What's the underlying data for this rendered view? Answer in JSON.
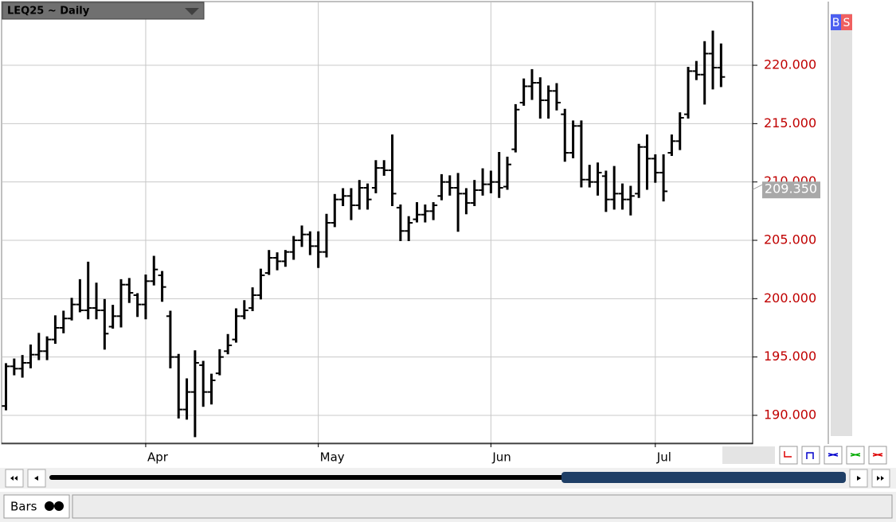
{
  "chart_data": {
    "type": "ohlc",
    "title": "LEQ25 ~ Daily",
    "categories": [
      null,
      null,
      null,
      null,
      null,
      null,
      null,
      null,
      null,
      null,
      null,
      null,
      null,
      null,
      null,
      null,
      null,
      "Apr",
      null,
      null,
      null,
      null,
      null,
      null,
      null,
      null,
      null,
      null,
      null,
      null,
      null,
      null,
      null,
      null,
      null,
      null,
      null,
      null,
      "May",
      null,
      null,
      null,
      null,
      null,
      null,
      null,
      null,
      null,
      null,
      null,
      null,
      null,
      null,
      null,
      null,
      null,
      null,
      null,
      null,
      "Jun",
      null,
      null,
      null,
      null,
      null,
      null,
      null,
      null,
      null,
      null,
      null,
      null,
      null,
      null,
      null,
      null,
      null,
      null,
      null,
      "Jul",
      null,
      null,
      null,
      null,
      null,
      null,
      null,
      null
    ],
    "open": [
      190.8,
      194.2,
      194.0,
      194.5,
      195.2,
      195.5,
      196.5,
      197.5,
      198.3,
      199.5,
      199.0,
      199.2,
      199.0,
      197.6,
      198.5,
      201.2,
      200.3,
      199.5,
      201.5,
      202.0,
      198.5,
      195.0,
      190.5,
      192.0,
      194.3,
      192.0,
      193.6,
      195.5,
      196.5,
      198.5,
      199.2,
      200.3,
      202.2,
      203.5,
      203.2,
      204.0,
      205.0,
      205.5,
      204.5,
      204.0,
      206.5,
      208.5,
      208.8,
      208.0,
      209.5,
      209.5,
      211.2,
      211.0,
      207.8,
      205.8,
      206.8,
      207.2,
      207.5,
      208.8,
      210.0,
      209.5,
      209.0,
      208.2,
      209.3,
      209.8,
      210.0,
      209.6,
      212.8,
      216.8,
      218.2,
      218.5,
      217.0,
      217.8,
      215.8,
      212.5,
      214.8,
      210.2,
      210.0,
      210.5,
      208.5,
      209.0,
      208.5,
      209.0,
      213.0,
      212.0,
      210.8,
      212.5,
      213.5,
      215.8,
      219.5,
      219.2,
      221.0,
      219.8
    ],
    "high": [
      194.4,
      194.8,
      195.1,
      196.0,
      197.0,
      196.7,
      198.5,
      198.9,
      200.0,
      201.6,
      203.1,
      201.3,
      199.9,
      199.4,
      201.6,
      201.7,
      200.4,
      202.0,
      203.6,
      202.3,
      198.9,
      195.2,
      193.1,
      195.5,
      194.6,
      193.5,
      195.6,
      196.9,
      199.1,
      199.8,
      200.9,
      202.5,
      204.1,
      203.9,
      204.1,
      205.3,
      206.2,
      205.7,
      205.7,
      207.2,
      208.9,
      209.4,
      209.4,
      210.1,
      209.8,
      211.8,
      211.8,
      214.0,
      208.0,
      207.0,
      208.2,
      208.0,
      208.2,
      210.6,
      210.5,
      210.7,
      209.4,
      210.1,
      211.1,
      210.9,
      212.5,
      212.1,
      216.6,
      218.8,
      219.6,
      218.9,
      218.2,
      218.4,
      216.2,
      215.2,
      215.2,
      211.4,
      211.6,
      210.9,
      211.3,
      209.8,
      209.6,
      213.2,
      214.0,
      212.3,
      212.3,
      214.0,
      215.9,
      219.8,
      220.3,
      222.0,
      222.9,
      221.8
    ],
    "low": [
      190.5,
      193.5,
      193.3,
      194.1,
      194.8,
      194.8,
      196.2,
      197.1,
      198.2,
      198.9,
      198.3,
      198.3,
      195.7,
      197.5,
      197.6,
      199.7,
      198.5,
      198.3,
      201.2,
      199.8,
      194.1,
      189.8,
      189.7,
      188.2,
      190.8,
      191.0,
      193.5,
      195.3,
      196.3,
      198.3,
      199.0,
      200.0,
      202.1,
      202.5,
      202.8,
      203.4,
      204.5,
      203.8,
      202.7,
      203.6,
      206.2,
      208.0,
      206.8,
      207.7,
      207.7,
      209.1,
      210.6,
      208.0,
      205.0,
      205.0,
      206.6,
      206.6,
      206.8,
      208.5,
      208.9,
      205.8,
      207.3,
      208.0,
      208.9,
      209.1,
      208.7,
      209.4,
      212.6,
      216.6,
      217.1,
      215.5,
      215.5,
      216.2,
      211.8,
      212.1,
      209.6,
      209.6,
      208.9,
      207.5,
      207.7,
      207.7,
      207.2,
      208.7,
      209.4,
      210.0,
      208.4,
      212.3,
      212.8,
      215.5,
      218.8,
      216.7,
      218.0,
      218.2
    ],
    "close": [
      194.2,
      194.0,
      194.5,
      195.2,
      195.5,
      196.5,
      197.5,
      198.3,
      199.5,
      199.0,
      199.2,
      199.0,
      197.0,
      198.5,
      201.2,
      200.5,
      199.5,
      201.5,
      202.5,
      201.0,
      195.0,
      190.5,
      192.0,
      194.5,
      192.0,
      193.0,
      195.0,
      196.0,
      198.5,
      199.0,
      200.3,
      202.0,
      203.5,
      203.2,
      204.0,
      205.0,
      205.5,
      204.5,
      204.0,
      206.5,
      208.5,
      208.8,
      208.0,
      209.5,
      208.5,
      211.2,
      211.0,
      209.0,
      205.8,
      206.5,
      207.2,
      207.5,
      208.0,
      210.0,
      209.5,
      209.0,
      208.2,
      209.3,
      209.8,
      210.0,
      209.5,
      211.5,
      216.2,
      218.2,
      218.5,
      217.0,
      217.8,
      216.8,
      212.5,
      214.8,
      210.2,
      210.0,
      210.8,
      208.5,
      209.0,
      208.5,
      208.8,
      213.0,
      212.0,
      210.8,
      209.2,
      213.5,
      215.5,
      219.5,
      219.2,
      221.0,
      219.8,
      219.0
    ],
    "color": "#000000",
    "ylim": [
      187.61,
      225.39
    ],
    "yticks": [
      {
        "value": 190,
        "label": "190.000"
      },
      {
        "value": 195,
        "label": "195.000"
      },
      {
        "value": 200,
        "label": "200.000"
      },
      {
        "value": 205,
        "label": "205.000"
      },
      {
        "value": 210,
        "label": "210.000"
      },
      {
        "value": 215,
        "label": "215.000"
      },
      {
        "value": 220,
        "label": "220.000"
      }
    ],
    "price_label": {
      "value": 209.35,
      "label": "209.350"
    },
    "grid": true
  },
  "ui": {
    "buy_button": "B",
    "sell_button": "S",
    "tab": "Bars"
  }
}
